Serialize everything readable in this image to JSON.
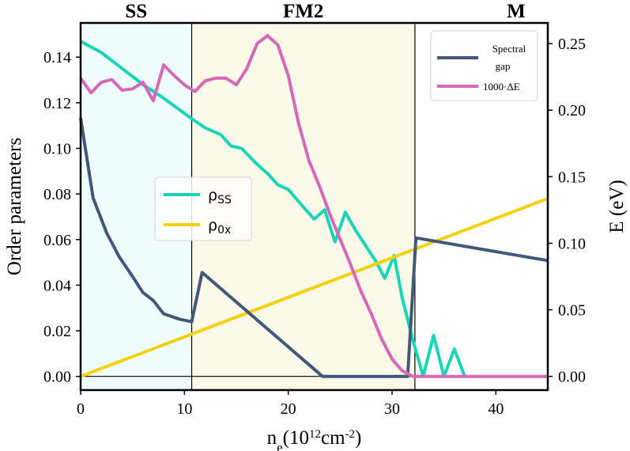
{
  "chart_data": {
    "type": "line",
    "xlabel": "n_e(10^12cm^-2)",
    "ylabel_left": "Order parameters",
    "ylabel_right": "E (eV)",
    "xlim": [
      0,
      45
    ],
    "ylim_left": [
      -0.006,
      0.155
    ],
    "ylim_right": [
      -0.0103,
      0.2655
    ],
    "x_ticks": [
      0,
      10,
      20,
      30,
      40
    ],
    "y_ticks_left": [
      0.0,
      0.02,
      0.04,
      0.06,
      0.08,
      0.1,
      0.12,
      0.14
    ],
    "y_ticks_right": [
      0.0,
      0.05,
      0.1,
      0.15,
      0.2,
      0.25
    ],
    "phase_boundaries": [
      10.7,
      32.2
    ],
    "phases": [
      {
        "label": "SS",
        "x_start": 0,
        "x_end": 10.7,
        "color": "#f0fdfd"
      },
      {
        "label": "FM2",
        "x_start": 10.7,
        "x_end": 32.2,
        "color": "#fbf9e8"
      },
      {
        "label": "M",
        "x_start": 32.2,
        "x_end": 45,
        "color": "#ffffff"
      }
    ],
    "legend_left": {
      "position": "center-left"
    },
    "legend_right": {
      "position": "top-right"
    },
    "series": [
      {
        "name": "ρ_SS",
        "axis": "left",
        "color": "#19d4b8",
        "points": [
          [
            0,
            0.147
          ],
          [
            2,
            0.142
          ],
          [
            4,
            0.135
          ],
          [
            6,
            0.128
          ],
          [
            8,
            0.122
          ],
          [
            10.7,
            0.113
          ],
          [
            12,
            0.109
          ],
          [
            13.5,
            0.106
          ],
          [
            14.5,
            0.101
          ],
          [
            15.5,
            0.1
          ],
          [
            17,
            0.093
          ],
          [
            18,
            0.089
          ],
          [
            19,
            0.084
          ],
          [
            20,
            0.082
          ],
          [
            21.5,
            0.074
          ],
          [
            22.5,
            0.069
          ],
          [
            23.5,
            0.073
          ],
          [
            24.5,
            0.059
          ],
          [
            25.5,
            0.072
          ],
          [
            26.5,
            0.064
          ],
          [
            27.5,
            0.057
          ],
          [
            28.5,
            0.05
          ],
          [
            29.3,
            0.043
          ],
          [
            30.2,
            0.053
          ],
          [
            31,
            0.034
          ],
          [
            32,
            0.016
          ],
          [
            33,
            0.0
          ],
          [
            34,
            0.018
          ],
          [
            35,
            0.0
          ],
          [
            36,
            0.012
          ],
          [
            37,
            0.0
          ]
        ]
      },
      {
        "name": "ρ_0x",
        "axis": "left",
        "color": "#f2d20f",
        "points": [
          [
            0,
            0.0
          ],
          [
            45,
            0.078
          ]
        ]
      },
      {
        "name": "Spectral gap",
        "axis": "right",
        "color": "#42587a",
        "points": [
          [
            0,
            0.194
          ],
          [
            1.2,
            0.134
          ],
          [
            2.5,
            0.108
          ],
          [
            3.7,
            0.09
          ],
          [
            5,
            0.075
          ],
          [
            6,
            0.063
          ],
          [
            7,
            0.057
          ],
          [
            8,
            0.047
          ],
          [
            9.5,
            0.043
          ],
          [
            10.7,
            0.041
          ],
          [
            11.7,
            0.078
          ],
          [
            23.3,
            0.0
          ],
          [
            31.5,
            0.0
          ],
          [
            32.3,
            0.104
          ],
          [
            45,
            0.087
          ]
        ]
      },
      {
        "name": "1000·ΔE",
        "axis": "right",
        "color": "#d568b9",
        "points": [
          [
            0,
            0.224
          ],
          [
            1,
            0.213
          ],
          [
            2,
            0.221
          ],
          [
            3,
            0.223
          ],
          [
            4,
            0.215
          ],
          [
            5,
            0.216
          ],
          [
            6,
            0.221
          ],
          [
            7,
            0.207
          ],
          [
            8,
            0.234
          ],
          [
            9,
            0.226
          ],
          [
            10,
            0.219
          ],
          [
            11,
            0.214
          ],
          [
            12,
            0.222
          ],
          [
            13,
            0.224
          ],
          [
            14,
            0.224
          ],
          [
            15,
            0.219
          ],
          [
            16,
            0.231
          ],
          [
            17,
            0.25
          ],
          [
            18,
            0.256
          ],
          [
            19,
            0.249
          ],
          [
            20,
            0.226
          ],
          [
            21,
            0.19
          ],
          [
            22,
            0.162
          ],
          [
            23,
            0.143
          ],
          [
            24,
            0.122
          ],
          [
            25,
            0.103
          ],
          [
            26,
            0.084
          ],
          [
            27,
            0.064
          ],
          [
            28,
            0.047
          ],
          [
            29,
            0.028
          ],
          [
            30,
            0.013
          ],
          [
            31,
            0.004
          ],
          [
            32,
            0.0
          ],
          [
            45,
            0.0
          ]
        ]
      }
    ],
    "legend_left_entries": [
      {
        "sym": "ρ",
        "sub": "SS",
        "color": "#19d4b8"
      },
      {
        "sym": "ρ",
        "sub": "0x",
        "color": "#f2d20f"
      }
    ],
    "legend_right_entries": [
      {
        "text": "Spectral",
        "text2": "gap",
        "color": "#42587a"
      },
      {
        "text": "1000·ΔE",
        "color": "#d568b9"
      }
    ]
  }
}
